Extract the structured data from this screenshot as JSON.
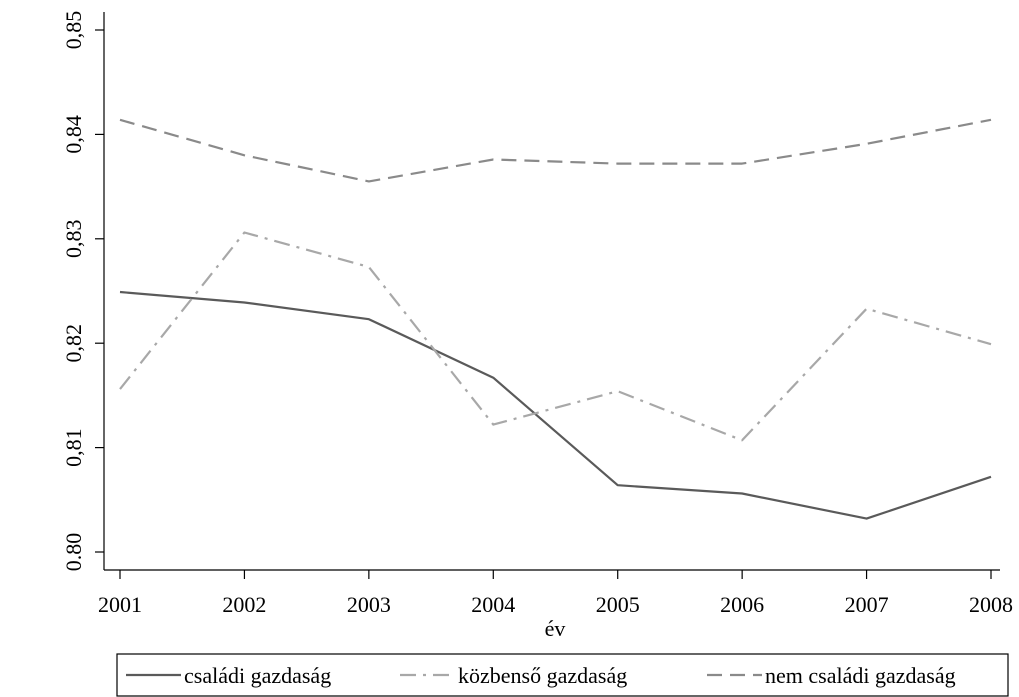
{
  "chart_data": {
    "type": "line",
    "title": "",
    "xlabel": "év",
    "ylabel": "",
    "x": [
      2001,
      2002,
      2003,
      2004,
      2005,
      2006,
      2007,
      2008
    ],
    "x_tick_labels": [
      "2001",
      "2002",
      "2003",
      "2004",
      "2005",
      "2006",
      "2007",
      "2008"
    ],
    "y_ticks": [
      0.8,
      0.81,
      0.82,
      0.83,
      0.84,
      0.85
    ],
    "y_tick_labels": [
      "0.80",
      "0,81",
      "0,82",
      "0,83",
      "0,84",
      "0,85"
    ],
    "ylim": [
      0.8,
      0.85
    ],
    "grid": false,
    "legend_position": "bottom",
    "series": [
      {
        "name": "családi gazdaság",
        "values": [
          0.8249,
          0.8239,
          0.8223,
          0.8167,
          0.8064,
          0.8056,
          0.8032,
          0.8072
        ],
        "color": "#5a5a5a",
        "style": "solid"
      },
      {
        "name": "közbenső gazdaság",
        "values": [
          0.8156,
          0.8306,
          0.8273,
          0.8122,
          0.8154,
          0.8107,
          0.8233,
          0.8199
        ],
        "color": "#a8a8a8",
        "style": "dash-dot"
      },
      {
        "name": "nem családi gazdaság",
        "values": [
          0.8414,
          0.838,
          0.8355,
          0.8376,
          0.8372,
          0.8372,
          0.8391,
          0.8414
        ],
        "color": "#8a8a8a",
        "style": "dashed"
      }
    ]
  }
}
